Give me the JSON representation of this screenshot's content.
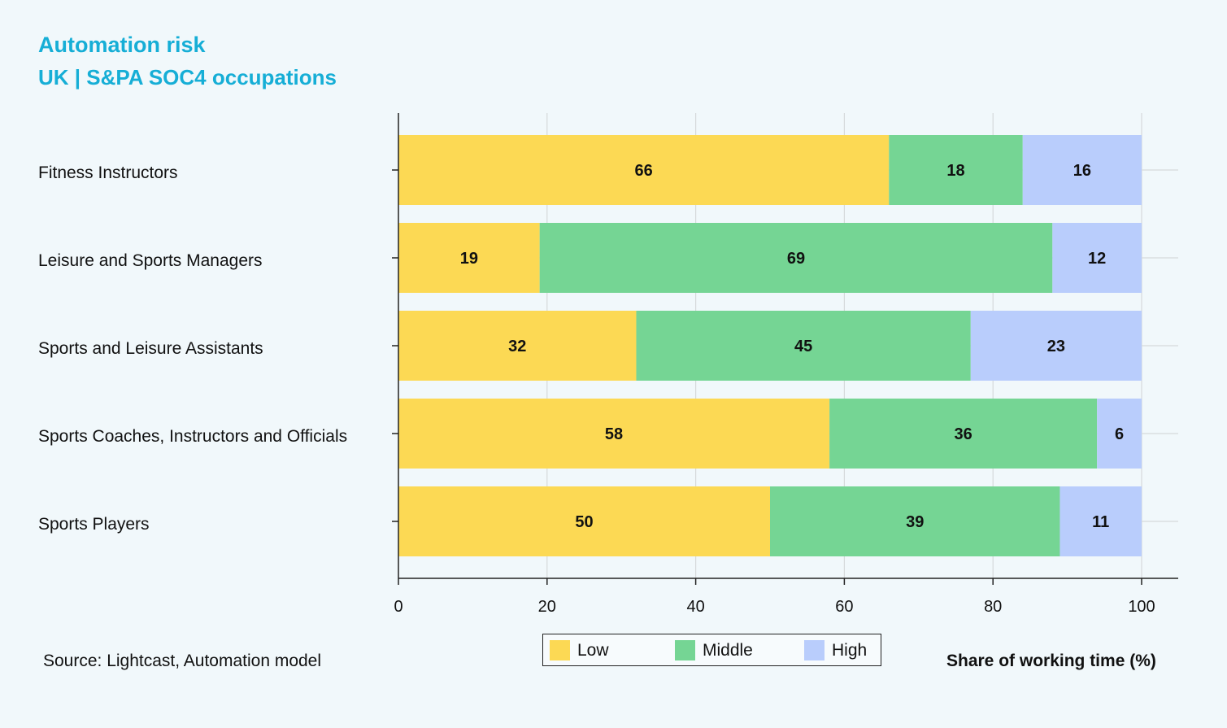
{
  "chart_data": {
    "type": "bar",
    "orientation": "horizontal",
    "stacked": true,
    "title": "Automation risk",
    "subtitle": "UK | S&PA SOC4 occupations",
    "categories": [
      "Fitness Instructors",
      "Leisure and Sports Managers",
      "Sports and Leisure Assistants",
      "Sports Coaches, Instructors and Officials",
      "Sports Players"
    ],
    "series": [
      {
        "name": "Low",
        "color": "#fcd954",
        "values": [
          66,
          19,
          32,
          58,
          50
        ]
      },
      {
        "name": "Middle",
        "color": "#75d594",
        "values": [
          18,
          69,
          45,
          36,
          39
        ]
      },
      {
        "name": "High",
        "color": "#b9cdfc",
        "values": [
          16,
          12,
          23,
          6,
          11
        ]
      }
    ],
    "xlabel": "Share of working time (%)",
    "xlim": [
      0,
      100
    ],
    "xticks": [
      0,
      20,
      40,
      60,
      80,
      100
    ],
    "grid": true,
    "legend_position": "bottom-center"
  },
  "footer": {
    "source": "Source: Lightcast, Automation model"
  }
}
